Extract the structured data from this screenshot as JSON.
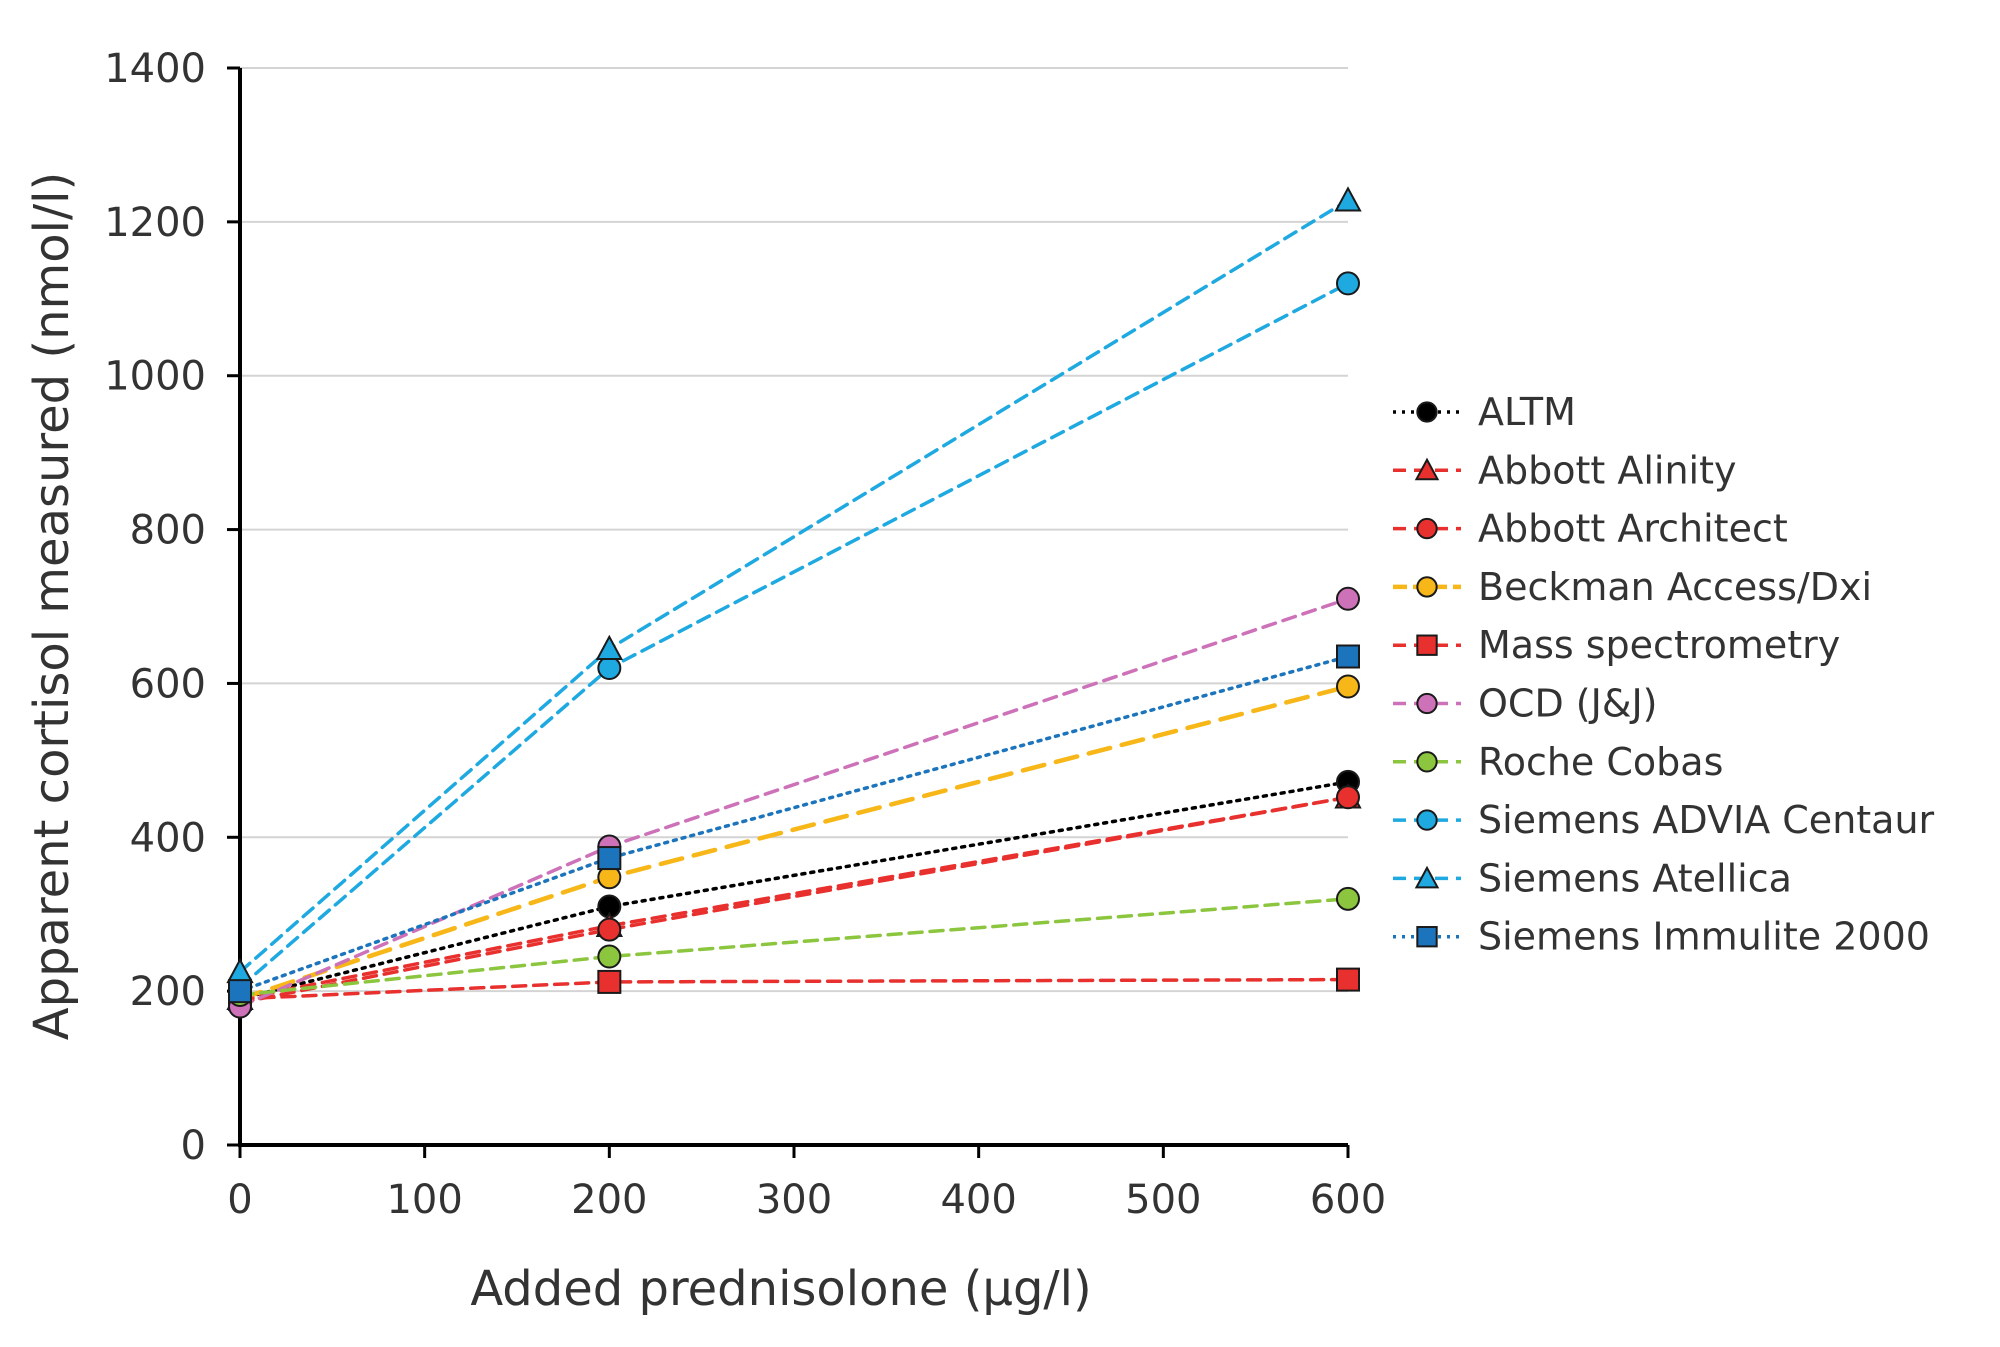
{
  "chart_data": {
    "type": "line",
    "xlabel": "Added prednisolone (μg/l)",
    "ylabel": "Apparent cortisol measured (nmol/l)",
    "x": [
      0,
      200,
      600
    ],
    "xlim": [
      0,
      600
    ],
    "ylim": [
      0,
      1400
    ],
    "x_ticks": [
      "0",
      "100",
      "200",
      "300",
      "400",
      "500",
      "600"
    ],
    "y_ticks": [
      "0",
      "200",
      "400",
      "600",
      "800",
      "1000",
      "1200",
      "1400"
    ],
    "grid": "horizontal",
    "legend_position": "right",
    "series": [
      {
        "name": "ALTM",
        "values": [
          190,
          310,
          472
        ],
        "color": "#000000",
        "line": "dotted",
        "marker": "circle"
      },
      {
        "name": "Abbott Alinity",
        "values": [
          190,
          285,
          452
        ],
        "color": "#e8312e",
        "line": "dashed",
        "marker": "triangle"
      },
      {
        "name": "Abbott Architect",
        "values": [
          185,
          280,
          452
        ],
        "color": "#e8312e",
        "line": "dashed",
        "marker": "circle"
      },
      {
        "name": "Beckman Access/Dxi",
        "values": [
          190,
          348,
          596
        ],
        "color": "#f7b718",
        "line": "longdash",
        "marker": "circle"
      },
      {
        "name": "Mass spectrometry",
        "values": [
          190,
          212,
          215
        ],
        "color": "#e8312e",
        "line": "dashed",
        "marker": "square"
      },
      {
        "name": "OCD (J&J)",
        "values": [
          180,
          388,
          710
        ],
        "color": "#cd72b9",
        "line": "dashed",
        "marker": "circle"
      },
      {
        "name": "Roche Cobas",
        "values": [
          195,
          245,
          320
        ],
        "color": "#8cc63f",
        "line": "dashed",
        "marker": "circle"
      },
      {
        "name": "Siemens ADVIA Centaur",
        "values": [
          205,
          620,
          1120
        ],
        "color": "#1fa9e1",
        "line": "dashed",
        "marker": "circle"
      },
      {
        "name": "Siemens Atellica",
        "values": [
          225,
          645,
          1228
        ],
        "color": "#1fa9e1",
        "line": "dashed",
        "marker": "triangle"
      },
      {
        "name": "Siemens Immulite 2000",
        "values": [
          200,
          373,
          635
        ],
        "color": "#1c75bc",
        "line": "dotted",
        "marker": "square"
      }
    ]
  }
}
